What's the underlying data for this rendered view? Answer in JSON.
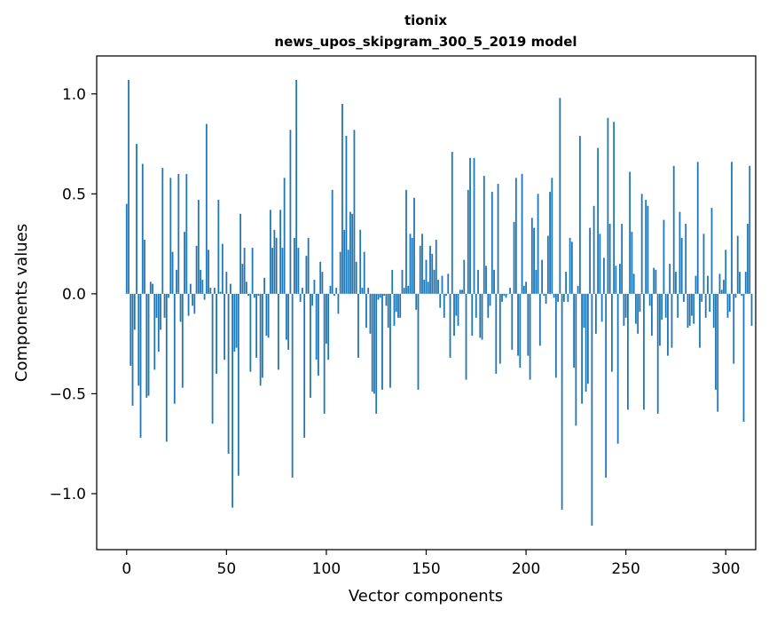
{
  "chart_data": {
    "type": "bar",
    "title_line1": "tionix",
    "title_line2": "news_upos_skipgram_300_5_2019 model",
    "xlabel": "Vector components",
    "ylabel": "Components values",
    "xlim": [
      -15,
      315
    ],
    "ylim": [
      -1.28,
      1.19
    ],
    "xticks": [
      0,
      50,
      100,
      150,
      200,
      250,
      300
    ],
    "xtick_labels": [
      "0",
      "50",
      "100",
      "150",
      "200",
      "250",
      "300"
    ],
    "yticks": [
      -1.0,
      -0.5,
      0.0,
      0.5,
      1.0
    ],
    "ytick_labels": [
      "−1.0",
      "−0.5",
      "0.0",
      "0.5",
      "1.0"
    ],
    "bar_color": "#1f77b4",
    "values": [
      0.45,
      1.07,
      -0.36,
      -0.56,
      -0.18,
      0.75,
      -0.46,
      -0.72,
      0.65,
      0.27,
      -0.52,
      -0.51,
      0.06,
      0.05,
      -0.38,
      -0.12,
      -0.29,
      -0.18,
      0.63,
      -0.12,
      -0.74,
      -0.02,
      0.58,
      0.21,
      -0.55,
      0.12,
      0.6,
      -0.14,
      -0.47,
      0.31,
      0.6,
      -0.11,
      0.05,
      -0.06,
      -0.1,
      0.24,
      0.47,
      0.12,
      0.07,
      -0.03,
      0.85,
      0.22,
      0.03,
      -0.65,
      0.03,
      -0.4,
      0.47,
      0.01,
      0.25,
      -0.33,
      0.11,
      -0.8,
      0.05,
      -1.07,
      -0.29,
      -0.27,
      -0.91,
      0.4,
      0.15,
      0.23,
      0.06,
      -0.01,
      -0.39,
      0.23,
      -0.02,
      -0.32,
      -0.01,
      -0.46,
      -0.42,
      0.08,
      -0.21,
      -0.22,
      0.42,
      0.23,
      0.32,
      0.28,
      -0.38,
      0.42,
      0.23,
      0.58,
      -0.23,
      -0.28,
      0.82,
      -0.92,
      0.28,
      1.07,
      0.23,
      -0.04,
      0.03,
      -0.72,
      0.19,
      0.28,
      -0.52,
      -0.06,
      0.07,
      -0.33,
      -0.41,
      0.16,
      0.11,
      -0.6,
      -0.25,
      -0.33,
      0.04,
      0.52,
      -0.01,
      0.03,
      -0.1,
      0.21,
      0.95,
      0.32,
      0.79,
      0.22,
      0.41,
      0.4,
      0.82,
      0.16,
      -0.32,
      0.32,
      0.03,
      0.21,
      -0.17,
      0.03,
      -0.2,
      -0.49,
      -0.5,
      -0.6,
      -0.03,
      -0.02,
      -0.48,
      -0.01,
      -0.06,
      -0.17,
      -0.47,
      0.12,
      -0.16,
      -0.09,
      -0.12,
      -0.12,
      0.12,
      0.03,
      0.52,
      0.04,
      0.3,
      0.28,
      0.48,
      -0.08,
      -0.48,
      0.24,
      0.3,
      0.07,
      0.17,
      0.06,
      0.24,
      0.2,
      0.12,
      0.27,
      0.07,
      -0.07,
      0.09,
      -0.12,
      -0.01,
      0.1,
      -0.32,
      0.71,
      -0.21,
      -0.11,
      -0.16,
      0.02,
      0.02,
      0.17,
      -0.43,
      0.52,
      0.68,
      -0.21,
      0.68,
      -0.12,
      0.12,
      -0.22,
      -0.23,
      0.59,
      0.14,
      -0.12,
      -0.06,
      0.51,
      0.12,
      -0.4,
      0.55,
      -0.35,
      -0.04,
      -0.01,
      -0.02,
      0.0,
      0.03,
      -0.28,
      0.36,
      0.58,
      -0.31,
      -0.37,
      0.6,
      0.04,
      0.06,
      -0.31,
      -0.43,
      0.38,
      0.33,
      0.12,
      0.5,
      -0.26,
      0.17,
      -0.01,
      -0.05,
      0.29,
      0.51,
      0.58,
      -0.02,
      -0.42,
      -0.04,
      0.98,
      -1.08,
      -0.04,
      0.11,
      -0.04,
      0.28,
      0.26,
      -0.37,
      -0.66,
      0.04,
      0.79,
      -0.55,
      -0.17,
      -0.49,
      -0.45,
      0.33,
      -1.16,
      0.44,
      -0.2,
      0.73,
      0.3,
      -0.14,
      0.18,
      -0.92,
      0.88,
      0.35,
      -0.39,
      0.86,
      0.14,
      -0.75,
      0.15,
      0.35,
      -0.16,
      -0.12,
      -0.58,
      0.61,
      0.31,
      0.1,
      -0.15,
      -0.2,
      -0.09,
      0.5,
      -0.58,
      0.47,
      0.44,
      -0.06,
      -0.21,
      0.13,
      0.12,
      -0.6,
      -0.26,
      -0.13,
      0.37,
      -0.12,
      -0.31,
      0.15,
      -0.27,
      0.64,
      0.11,
      -0.12,
      0.41,
      0.28,
      -0.04,
      0.35,
      -0.17,
      -0.16,
      -0.11,
      -0.15,
      0.09,
      0.66,
      -0.27,
      -0.04,
      0.3,
      -0.12,
      0.09,
      -0.09,
      0.43,
      -0.17,
      -0.48,
      -0.59,
      0.1,
      0.02,
      0.07,
      0.22,
      -0.12,
      -0.09,
      0.66,
      -0.35,
      -0.02,
      0.29,
      0.11,
      -0.01,
      -0.64,
      0.11,
      0.35,
      0.64,
      -0.16
    ]
  }
}
